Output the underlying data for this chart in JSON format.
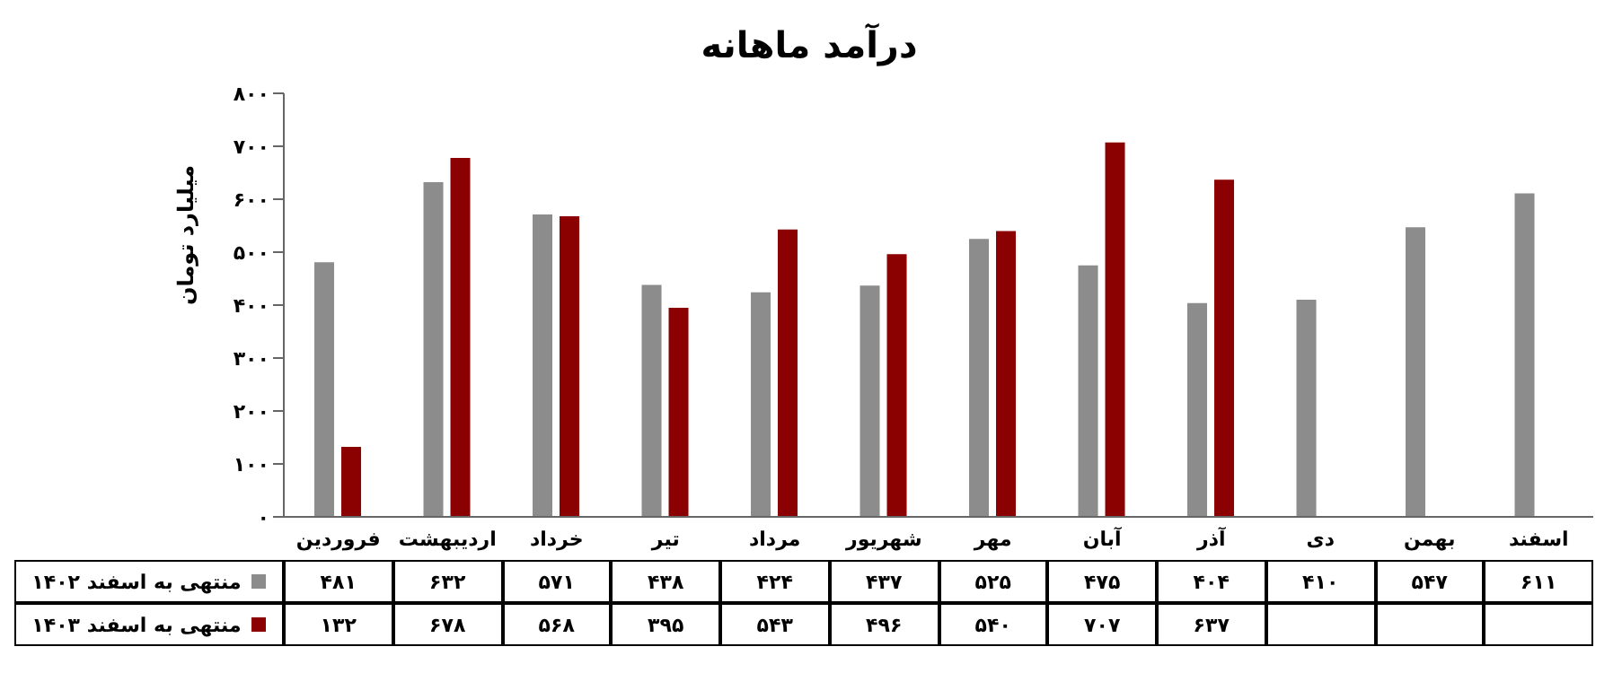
{
  "chart_data": {
    "type": "bar",
    "title": "درآمد ماهانه",
    "ylabel": "میلیارد تومان",
    "categories": [
      "فروردین",
      "اردیبهشت",
      "خرداد",
      "تیر",
      "مرداد",
      "شهریور",
      "مهر",
      "آبان",
      "آذر",
      "دی",
      "بهمن",
      "اسفند"
    ],
    "series": [
      {
        "name": "منتهی به اسفند ۱۴۰۲",
        "color": "#8c8c8c",
        "values": [
          481,
          632,
          571,
          438,
          424,
          437,
          525,
          475,
          404,
          410,
          547,
          611
        ],
        "value_labels": [
          "۴۸۱",
          "۶۳۲",
          "۵۷۱",
          "۴۳۸",
          "۴۲۴",
          "۴۳۷",
          "۵۲۵",
          "۴۷۵",
          "۴۰۴",
          "۴۱۰",
          "۵۴۷",
          "۶۱۱"
        ]
      },
      {
        "name": "منتهی به اسفند ۱۴۰۳",
        "color": "#8b0000",
        "values": [
          132,
          678,
          568,
          395,
          543,
          496,
          540,
          707,
          637,
          null,
          null,
          null
        ],
        "value_labels": [
          "۱۳۲",
          "۶۷۸",
          "۵۶۸",
          "۳۹۵",
          "۵۴۳",
          "۴۹۶",
          "۵۴۰",
          "۷۰۷",
          "۶۳۷",
          null,
          null,
          null
        ]
      }
    ],
    "ylim": [
      0,
      800
    ],
    "yticks": [
      {
        "value": 0,
        "label": "۰"
      },
      {
        "value": 100,
        "label": "۱۰۰"
      },
      {
        "value": 200,
        "label": "۲۰۰"
      },
      {
        "value": 300,
        "label": "۳۰۰"
      },
      {
        "value": 400,
        "label": "۴۰۰"
      },
      {
        "value": 500,
        "label": "۵۰۰"
      },
      {
        "value": 600,
        "label": "۶۰۰"
      },
      {
        "value": 700,
        "label": "۷۰۰"
      },
      {
        "value": 800,
        "label": "۸۰۰"
      }
    ],
    "legend": "bottom left",
    "grid": false
  }
}
